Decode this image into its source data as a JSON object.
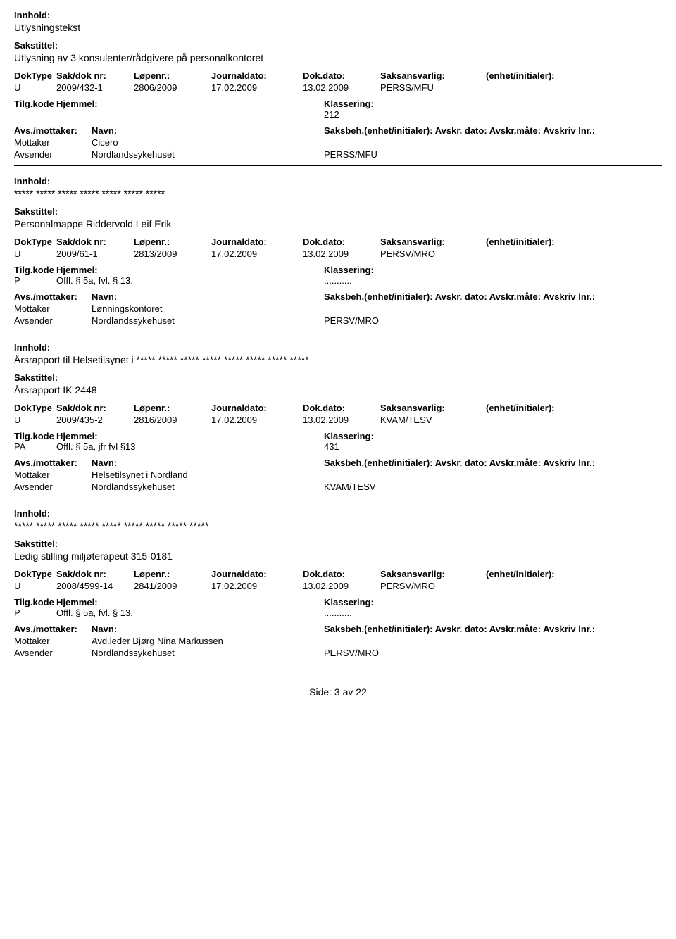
{
  "labels": {
    "innhold": "Innhold:",
    "sakstittel": "Sakstittel:",
    "doktype": "DokType",
    "sakdok": "Sak/dok nr:",
    "lopenr": "Løpenr.:",
    "journaldato": "Journaldato:",
    "dokdato": "Dok.dato:",
    "saksansvarlig": "Saksansvarlig:",
    "enhet": "(enhet/initialer):",
    "tilgkode": "Tilg.kode",
    "hjemmel": "Hjemmel:",
    "klassering": "Klassering:",
    "avsmottaker": "Avs./mottaker:",
    "navn": "Navn:",
    "saksbeh_line": "Saksbeh.(enhet/initialer): Avskr. dato:  Avskr.måte:  Avskriv lnr.:",
    "mottaker": "Mottaker",
    "avsender": "Avsender"
  },
  "records": [
    {
      "innhold": "Utlysningstekst",
      "sakstittel": "Utlysning av 3 konsulenter/rådgivere på personalkontoret",
      "doktype": "U",
      "sakdok": "2009/432-1",
      "lopenr": "2806/2009",
      "journaldato": "17.02.2009",
      "dokdato": "13.02.2009",
      "saksansvarlig": "PERSS/MFU",
      "tilgkode": "",
      "hjemmel": "",
      "klassering": "212",
      "parties": [
        {
          "role": "Mottaker",
          "name": "Cicero",
          "unit": ""
        },
        {
          "role": "Avsender",
          "name": "Nordlandssykehuset",
          "unit": "PERSS/MFU"
        }
      ]
    },
    {
      "innhold": "***** ***** ***** ***** ***** ***** *****",
      "sakstittel": "Personalmappe Riddervold Leif Erik",
      "doktype": "U",
      "sakdok": "2009/61-1",
      "lopenr": "2813/2009",
      "journaldato": "17.02.2009",
      "dokdato": "13.02.2009",
      "saksansvarlig": "PERSV/MRO",
      "tilgkode": "P",
      "hjemmel": "Offl. § 5a, fvl. § 13.",
      "klassering": "...........",
      "parties": [
        {
          "role": "Mottaker",
          "name": "Lønningskontoret",
          "unit": ""
        },
        {
          "role": "Avsender",
          "name": "Nordlandssykehuset",
          "unit": "PERSV/MRO"
        }
      ]
    },
    {
      "innhold": "Årsrapport til Helsetilsynet i ***** ***** ***** ***** ***** ***** ***** *****",
      "sakstittel": "Årsrapport IK 2448",
      "doktype": "U",
      "sakdok": "2009/435-2",
      "lopenr": "2816/2009",
      "journaldato": "17.02.2009",
      "dokdato": "13.02.2009",
      "saksansvarlig": "KVAM/TESV",
      "tilgkode": "PA",
      "hjemmel": "Offl. § 5a, jfr fvl §13",
      "klassering": "431",
      "parties": [
        {
          "role": "Mottaker",
          "name": "Helsetilsynet i Nordland",
          "unit": ""
        },
        {
          "role": "Avsender",
          "name": "Nordlandssykehuset",
          "unit": "KVAM/TESV"
        }
      ]
    },
    {
      "innhold": "***** ***** ***** ***** ***** ***** ***** ***** *****",
      "sakstittel": "Ledig stilling  miljøterapeut  315-0181",
      "doktype": "U",
      "sakdok": "2008/4599-14",
      "lopenr": "2841/2009",
      "journaldato": "17.02.2009",
      "dokdato": "13.02.2009",
      "saksansvarlig": "PERSV/MRO",
      "tilgkode": "P",
      "hjemmel": "Offl. § 5a, fvl. § 13.",
      "klassering": "...........",
      "parties": [
        {
          "role": "Mottaker",
          "name": "Avd.leder Bjørg Nina Markussen",
          "unit": ""
        },
        {
          "role": "Avsender",
          "name": "Nordlandssykehuset",
          "unit": "PERSV/MRO"
        }
      ]
    }
  ],
  "footer": "Side: 3 av 22"
}
